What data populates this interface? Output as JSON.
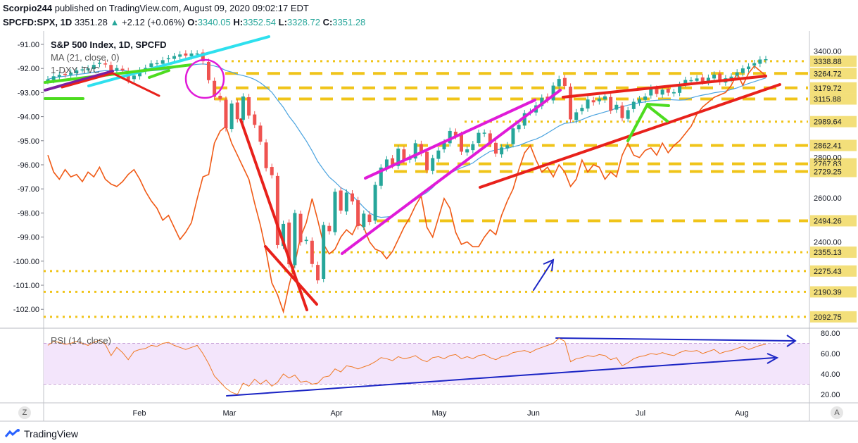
{
  "header": {
    "author": "Scorpio244",
    "published": "published on TradingView.com, August 09, 2020 09:02:17 EDT"
  },
  "quote": {
    "symbol": "SPCFD:SPX, 1D",
    "last": "3351.28",
    "change": "+2.12 (+0.06%)",
    "o_label": "O:",
    "o": "3340.05",
    "h_label": "H:",
    "h": "3352.54",
    "l_label": "L:",
    "l": "3328.72",
    "c_label": "C:",
    "c": "3351.28"
  },
  "legend": {
    "title": "S&P 500 Index, 1D, SPCFD",
    "ma": "MA (21, close, 0)",
    "dxy": "1-DXY, TVC",
    "rsi": "RSI (14, close)"
  },
  "corners": {
    "left": "Z",
    "right": "A"
  },
  "brand": "TradingView",
  "colors": {
    "up": "#26a69a",
    "down": "#ef5350",
    "orange": "#f05a16",
    "ma": "#4aa3df",
    "gold": "#f0c419",
    "red": "#e8211b",
    "magenta": "#e01bd8",
    "green": "#4ddc1f",
    "cyan": "#2ee0ee",
    "purple": "#7b1fa2",
    "blue": "#1a24c4",
    "rsi": "#f07a24"
  },
  "chart_data": {
    "type": "candlestick",
    "x_ticks": [
      "Feb",
      "Mar",
      "Apr",
      "May",
      "Jun",
      "Jul",
      "Aug"
    ],
    "price_axis": {
      "ticks": [
        "3400.00",
        "2800.00",
        "2600.00",
        "2400.00"
      ],
      "levels": [
        {
          "label": "3338.88",
          "value": 3338.88
        },
        {
          "label": "3264.72",
          "value": 3264.72
        },
        {
          "label": "3179.72",
          "value": 3179.72
        },
        {
          "label": "3115.88",
          "value": 3115.88
        },
        {
          "label": "2989.64",
          "value": 2989.64
        },
        {
          "label": "2862.41",
          "value": 2862.41
        },
        {
          "label": "2767.83",
          "value": 2767.83
        },
        {
          "label": "2729.25",
          "value": 2729.25
        },
        {
          "label": "2494.26",
          "value": 2494.26
        },
        {
          "label": "2355.13",
          "value": 2355.13
        },
        {
          "label": "2275.43",
          "value": 2275.43
        },
        {
          "label": "2190.39",
          "value": 2190.39
        },
        {
          "label": "2092.75",
          "value": 2092.75
        }
      ]
    },
    "dxy_axis": {
      "ticks": [
        "-91.00",
        "-92.00",
        "-93.00",
        "-94.00",
        "-95.00",
        "-96.00",
        "-97.00",
        "-98.00",
        "-99.00",
        "-100.00",
        "-101.00",
        "-102.00"
      ]
    },
    "rsi_axis": {
      "ticks": [
        "80.00",
        "60.00",
        "40.00",
        "20.00"
      ],
      "band": [
        30,
        70
      ]
    },
    "series": [
      {
        "name": "S&P 500 Index, 1D, SPCFD",
        "kind": "candles",
        "close": [
          3230,
          3248,
          3256,
          3260,
          3270,
          3283,
          3289,
          3295,
          3316,
          3329,
          3320,
          3275,
          3297,
          3284,
          3225,
          3252,
          3283,
          3298,
          3325,
          3327,
          3345,
          3357,
          3370,
          3380,
          3373,
          3386,
          3386,
          3338,
          3225,
          3128,
          3116,
          2954,
          3090,
          3003,
          3130,
          3023,
          2972,
          2882,
          2746,
          2711,
          2386,
          2480,
          2304,
          2530,
          2398,
          2409,
          2305,
          2237,
          2475,
          2447,
          2630,
          2541,
          2626,
          2584,
          2470,
          2527,
          2489,
          2663,
          2749,
          2790,
          2761,
          2846,
          2783,
          2799,
          2874,
          2823,
          2736,
          2797,
          2836,
          2878,
          2939,
          2912,
          2830,
          2842,
          2869,
          2929,
          2930,
          2870,
          2820,
          2852,
          2863,
          2953,
          2972,
          3036,
          3044,
          3080,
          3123,
          3112,
          3193,
          3232,
          3191,
          3002,
          3041,
          3066,
          3113,
          3097,
          3117,
          3131,
          3050,
          3083,
          3009,
          3053,
          3100,
          3115,
          3130,
          3179,
          3145,
          3169,
          3152,
          3155,
          3197,
          3226,
          3225,
          3235,
          3218,
          3239,
          3258,
          3215,
          3236,
          3246,
          3271,
          3295,
          3306,
          3327,
          3349,
          3351
        ]
      },
      {
        "name": "MA (21, close, 0)",
        "kind": "line"
      },
      {
        "name": "1-DXY, TVC",
        "kind": "line",
        "values": [
          -95.6,
          -96.3,
          -96.6,
          -96.2,
          -96.5,
          -96.4,
          -96.7,
          -96.3,
          -96.5,
          -96.1,
          -96.6,
          -96.8,
          -96.9,
          -96.7,
          -96.4,
          -96.2,
          -96.6,
          -97.1,
          -97.5,
          -97.8,
          -98.3,
          -98.1,
          -98.6,
          -99.1,
          -98.8,
          -98.4,
          -97.4,
          -96.5,
          -96.4,
          -95.1,
          -94.6,
          -94.4,
          -95.1,
          -95.6,
          -96.1,
          -96.6,
          -97.6,
          -98.5,
          -99.6,
          -100.9,
          -101.4,
          -102.1,
          -101.0,
          -100.1,
          -99.0,
          -98.4,
          -97.4,
          -98.3,
          -99.3,
          -99.7,
          -99.5,
          -99.0,
          -98.7,
          -98.9,
          -98.4,
          -98.6,
          -99.2,
          -99.5,
          -99.6,
          -99.9,
          -99.6,
          -99.1,
          -98.6,
          -98.2,
          -97.7,
          -97.3,
          -98.6,
          -99.0,
          -98.2,
          -97.4,
          -97.8,
          -98.8,
          -99.3,
          -99.2,
          -99.4,
          -99.4,
          -99.0,
          -98.7,
          -98.9,
          -98.1,
          -97.5,
          -97.0,
          -96.2,
          -95.5,
          -95.2,
          -95.8,
          -96.3,
          -96.1,
          -96.5,
          -96.0,
          -96.3,
          -96.9,
          -96.6,
          -95.8,
          -96.3,
          -96.0,
          -96.1,
          -96.6,
          -96.3,
          -96.5,
          -95.6,
          -95.1,
          -95.6,
          -95.7,
          -95.4,
          -95.3,
          -95.6,
          -95.1,
          -95.5,
          -95.2,
          -95.0,
          -94.7,
          -94.4,
          -93.9,
          -93.6,
          -93.4,
          -93.2,
          -93.1,
          -93.0,
          -92.7,
          -92.2,
          -92.7,
          -92.2,
          -91.9,
          -92.1,
          -92.3
        ]
      },
      {
        "name": "RSI (14, close)",
        "kind": "line",
        "values": [
          68,
          72,
          71,
          69,
          70,
          72,
          70,
          68,
          71,
          73,
          69,
          58,
          66,
          61,
          54,
          62,
          64,
          65,
          68,
          67,
          70,
          71,
          68,
          66,
          64,
          66,
          68,
          60,
          50,
          38,
          32,
          26,
          22,
          20,
          31,
          28,
          35,
          30,
          34,
          28,
          32,
          40,
          36,
          39,
          32,
          33,
          30,
          31,
          37,
          38,
          45,
          42,
          48,
          47,
          45,
          47,
          49,
          52,
          56,
          55,
          53,
          57,
          55,
          56,
          58,
          54,
          52,
          56,
          57,
          55,
          58,
          59,
          55,
          57,
          55,
          58,
          59,
          56,
          54,
          57,
          58,
          61,
          62,
          63,
          61,
          64,
          66,
          68,
          70,
          75,
          72,
          52,
          55,
          56,
          58,
          57,
          59,
          58,
          54,
          56,
          48,
          51,
          55,
          57,
          58,
          60,
          59,
          61,
          59,
          58,
          61,
          63,
          62,
          63,
          60,
          62,
          64,
          60,
          62,
          63,
          65,
          67,
          64,
          66,
          68,
          69
        ]
      }
    ]
  }
}
